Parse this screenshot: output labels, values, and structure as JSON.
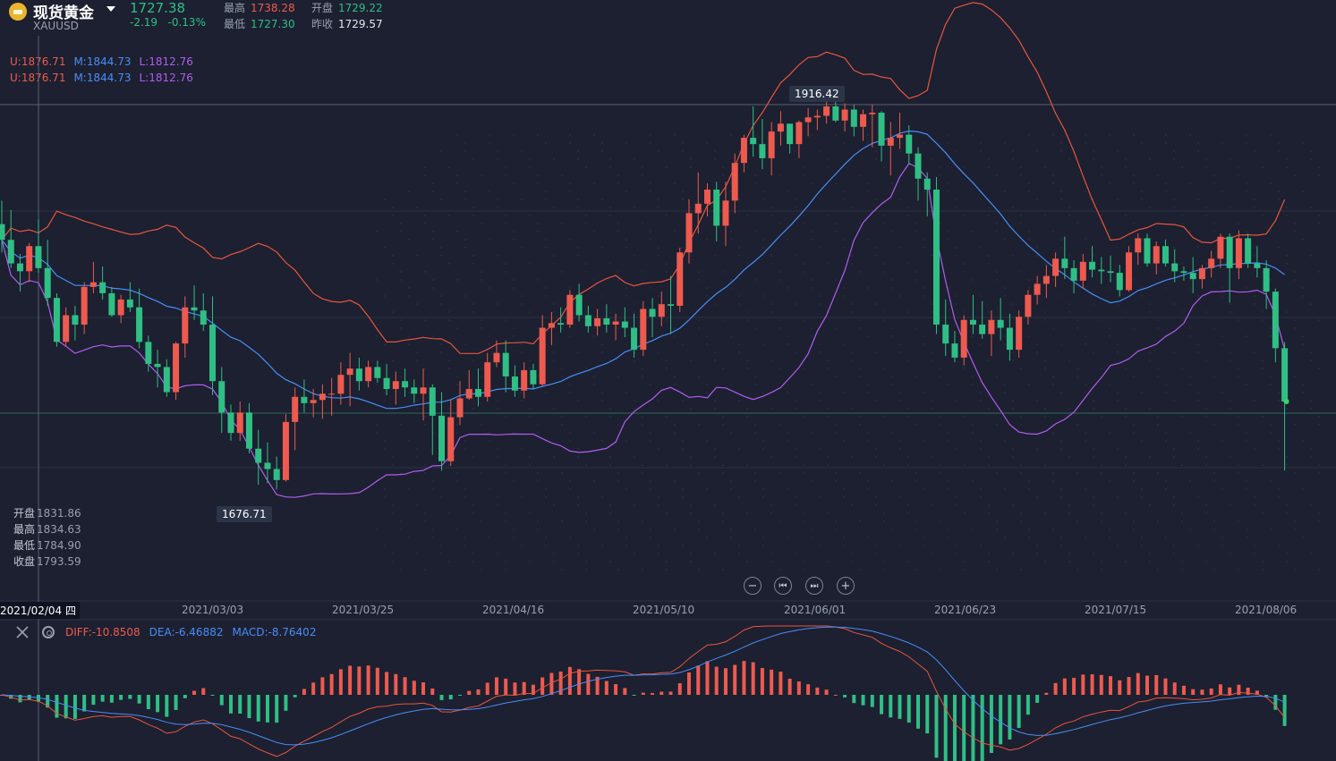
{
  "header": {
    "title": "现货黄金",
    "symbol": "XAUUSD",
    "price": "1727.38",
    "change": "-2.19",
    "change_pct": "-0.13%",
    "high_label": "最高",
    "high": "1738.28",
    "open_label": "开盘",
    "open": "1729.22",
    "low_label": "最低",
    "low": "1727.30",
    "prev_label": "昨收",
    "prev_close": "1729.57"
  },
  "boll_legend": {
    "U": "U:1876.71",
    "M": "M:1844.73",
    "L": "L:1812.76"
  },
  "crosshair_ohlc": {
    "open_label": "开盘",
    "open": "1831.86",
    "high_label": "最高",
    "high": "1834.63",
    "low_label": "最低",
    "low": "1784.90",
    "close_label": "收盘",
    "close": "1793.59"
  },
  "tooltips": {
    "max": "1916.42",
    "min": "1676.71"
  },
  "crosshair_date": "2021/02/04 四",
  "nav": {
    "zoom_out": "−",
    "prev": "⏮",
    "next": "⏭",
    "zoom_in": "+"
  },
  "x_labels": [
    "2021/03/03",
    "2021/03/25",
    "2021/04/16",
    "2021/05/10",
    "2021/06/01",
    "2021/06/23",
    "2021/07/15",
    "2021/08/06"
  ],
  "macd_legend": {
    "diff": "DIFF:-10.8508",
    "dea": "DEA:-6.46882",
    "macd": "MACD:-8.76402"
  },
  "colors": {
    "up": "#ee5a4f",
    "down": "#2fbf85",
    "upper": "#e8553f",
    "mid": "#4a8df8",
    "lower": "#b25cf0",
    "bg": "#1c2030"
  },
  "chart_data": {
    "type": "candlestick",
    "ylim": [
      1600,
      1960
    ],
    "candles": [
      [
        1840,
        1855,
        1822,
        1830
      ],
      [
        1830,
        1849,
        1812,
        1815
      ],
      [
        1815,
        1821,
        1797,
        1810
      ],
      [
        1810,
        1828,
        1803,
        1826
      ],
      [
        1826,
        1843,
        1809,
        1812
      ],
      [
        1812,
        1830,
        1788,
        1793
      ],
      [
        1793,
        1796,
        1762,
        1765
      ],
      [
        1765,
        1787,
        1762,
        1782
      ],
      [
        1782,
        1788,
        1766,
        1776
      ],
      [
        1776,
        1803,
        1770,
        1800
      ],
      [
        1800,
        1816,
        1796,
        1803
      ],
      [
        1803,
        1813,
        1792,
        1796
      ],
      [
        1796,
        1800,
        1781,
        1782
      ],
      [
        1782,
        1795,
        1777,
        1792
      ],
      [
        1792,
        1803,
        1784,
        1787
      ],
      [
        1787,
        1799,
        1761,
        1765
      ],
      [
        1765,
        1769,
        1746,
        1751
      ],
      [
        1751,
        1760,
        1736,
        1749
      ],
      [
        1749,
        1754,
        1730,
        1733
      ],
      [
        1733,
        1765,
        1728,
        1764
      ],
      [
        1764,
        1794,
        1755,
        1787
      ],
      [
        1787,
        1801,
        1779,
        1785
      ],
      [
        1785,
        1796,
        1772,
        1776
      ],
      [
        1776,
        1794,
        1731,
        1740
      ],
      [
        1740,
        1749,
        1707,
        1720
      ],
      [
        1720,
        1725,
        1702,
        1707
      ],
      [
        1707,
        1727,
        1702,
        1720
      ],
      [
        1720,
        1726,
        1694,
        1697
      ],
      [
        1697,
        1709,
        1674,
        1688
      ],
      [
        1688,
        1701,
        1675,
        1684
      ],
      [
        1684,
        1692,
        1671,
        1677
      ],
      [
        1677,
        1719,
        1676,
        1714
      ],
      [
        1714,
        1736,
        1696,
        1730
      ],
      [
        1730,
        1741,
        1720,
        1726
      ],
      [
        1726,
        1735,
        1717,
        1728
      ],
      [
        1728,
        1738,
        1716,
        1732
      ],
      [
        1732,
        1742,
        1718,
        1732
      ],
      [
        1732,
        1752,
        1725,
        1744
      ],
      [
        1744,
        1758,
        1724,
        1748
      ],
      [
        1748,
        1755,
        1734,
        1740
      ],
      [
        1740,
        1753,
        1736,
        1749
      ],
      [
        1749,
        1753,
        1739,
        1742
      ],
      [
        1742,
        1751,
        1731,
        1735
      ],
      [
        1735,
        1746,
        1725,
        1740
      ],
      [
        1740,
        1748,
        1730,
        1736
      ],
      [
        1736,
        1741,
        1726,
        1732
      ],
      [
        1732,
        1748,
        1715,
        1736
      ],
      [
        1736,
        1738,
        1693,
        1718
      ],
      [
        1718,
        1733,
        1683,
        1689
      ],
      [
        1689,
        1728,
        1686,
        1717
      ],
      [
        1717,
        1740,
        1712,
        1729
      ],
      [
        1729,
        1747,
        1728,
        1735
      ],
      [
        1735,
        1748,
        1724,
        1730
      ],
      [
        1730,
        1758,
        1727,
        1752
      ],
      [
        1752,
        1766,
        1749,
        1758
      ],
      [
        1758,
        1766,
        1733,
        1743
      ],
      [
        1743,
        1750,
        1730,
        1734
      ],
      [
        1734,
        1752,
        1729,
        1747
      ],
      [
        1747,
        1751,
        1735,
        1738
      ],
      [
        1738,
        1782,
        1737,
        1774
      ],
      [
        1774,
        1784,
        1763,
        1777
      ],
      [
        1777,
        1787,
        1771,
        1776
      ],
      [
        1776,
        1798,
        1774,
        1795
      ],
      [
        1795,
        1802,
        1778,
        1782
      ],
      [
        1782,
        1788,
        1771,
        1775
      ],
      [
        1775,
        1786,
        1769,
        1780
      ],
      [
        1780,
        1789,
        1771,
        1776
      ],
      [
        1776,
        1783,
        1766,
        1778
      ],
      [
        1778,
        1787,
        1768,
        1774
      ],
      [
        1774,
        1783,
        1755,
        1760
      ],
      [
        1760,
        1791,
        1756,
        1786
      ],
      [
        1786,
        1793,
        1768,
        1781
      ],
      [
        1781,
        1797,
        1775,
        1789
      ],
      [
        1789,
        1807,
        1770,
        1788
      ],
      [
        1788,
        1825,
        1784,
        1822
      ],
      [
        1822,
        1856,
        1815,
        1847
      ],
      [
        1847,
        1873,
        1834,
        1853
      ],
      [
        1853,
        1866,
        1845,
        1862
      ],
      [
        1862,
        1867,
        1829,
        1839
      ],
      [
        1839,
        1867,
        1826,
        1855
      ],
      [
        1855,
        1885,
        1847,
        1879
      ],
      [
        1879,
        1897,
        1873,
        1895
      ],
      [
        1895,
        1915,
        1883,
        1891
      ],
      [
        1891,
        1907,
        1875,
        1882
      ],
      [
        1882,
        1905,
        1871,
        1899
      ],
      [
        1899,
        1912,
        1890,
        1904
      ],
      [
        1904,
        1903,
        1885,
        1891
      ],
      [
        1891,
        1906,
        1882,
        1905
      ],
      [
        1905,
        1914,
        1896,
        1908
      ],
      [
        1908,
        1913,
        1900,
        1909
      ],
      [
        1909,
        1920,
        1904,
        1915
      ],
      [
        1915,
        1919,
        1905,
        1906
      ],
      [
        1906,
        1917,
        1899,
        1913
      ],
      [
        1913,
        1916,
        1896,
        1902
      ],
      [
        1902,
        1913,
        1893,
        1910
      ],
      [
        1910,
        1916,
        1889,
        1911
      ],
      [
        1911,
        1912,
        1880,
        1890
      ],
      [
        1890,
        1905,
        1871,
        1895
      ],
      [
        1895,
        1911,
        1888,
        1897
      ],
      [
        1897,
        1903,
        1878,
        1885
      ],
      [
        1885,
        1889,
        1855,
        1869
      ],
      [
        1869,
        1873,
        1845,
        1862
      ],
      [
        1862,
        1870,
        1770,
        1776
      ],
      [
        1776,
        1792,
        1756,
        1764
      ],
      [
        1764,
        1772,
        1752,
        1755
      ],
      [
        1755,
        1782,
        1750,
        1779
      ],
      [
        1779,
        1795,
        1770,
        1776
      ],
      [
        1776,
        1791,
        1767,
        1770
      ],
      [
        1770,
        1785,
        1756,
        1779
      ],
      [
        1779,
        1793,
        1766,
        1774
      ],
      [
        1774,
        1783,
        1753,
        1760
      ],
      [
        1760,
        1785,
        1755,
        1781
      ],
      [
        1781,
        1798,
        1776,
        1795
      ],
      [
        1795,
        1807,
        1789,
        1802
      ],
      [
        1802,
        1814,
        1793,
        1807
      ],
      [
        1807,
        1822,
        1800,
        1818
      ],
      [
        1818,
        1832,
        1805,
        1812
      ],
      [
        1812,
        1817,
        1796,
        1804
      ],
      [
        1804,
        1821,
        1799,
        1816
      ],
      [
        1816,
        1826,
        1806,
        1811
      ],
      [
        1811,
        1819,
        1802,
        1810
      ],
      [
        1810,
        1820,
        1803,
        1809
      ],
      [
        1809,
        1814,
        1794,
        1798
      ],
      [
        1798,
        1826,
        1797,
        1822
      ],
      [
        1822,
        1834,
        1814,
        1831
      ],
      [
        1831,
        1834,
        1813,
        1815
      ],
      [
        1815,
        1829,
        1808,
        1826
      ],
      [
        1826,
        1830,
        1813,
        1815
      ],
      [
        1815,
        1824,
        1803,
        1810
      ],
      [
        1810,
        1813,
        1804,
        1809
      ],
      [
        1809,
        1819,
        1796,
        1805
      ],
      [
        1805,
        1814,
        1799,
        1812
      ],
      [
        1812,
        1823,
        1806,
        1818
      ],
      [
        1818,
        1834,
        1812,
        1832
      ],
      [
        1832,
        1834,
        1790,
        1812
      ],
      [
        1812,
        1836,
        1805,
        1831
      ],
      [
        1831,
        1834,
        1812,
        1815
      ],
      [
        1815,
        1826,
        1806,
        1812
      ],
      [
        1812,
        1817,
        1786,
        1797
      ],
      [
        1797,
        1799,
        1752,
        1761
      ],
      [
        1761,
        1765,
        1683,
        1727
      ]
    ],
    "ohlc_order": [
      "open",
      "high",
      "low",
      "close"
    ],
    "indicators": [
      "BOLL",
      "MACD"
    ]
  }
}
